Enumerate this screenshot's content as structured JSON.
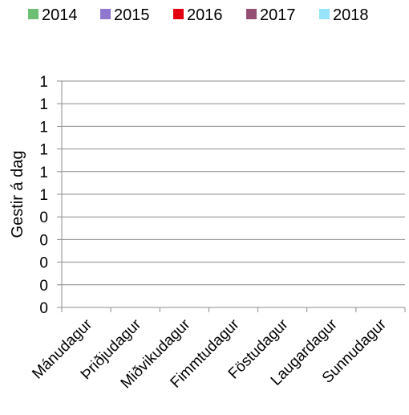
{
  "chart_data": {
    "type": "bar",
    "title": "",
    "xlabel": "",
    "ylabel": "Gestir á dag",
    "categories": [
      "Mánudagur",
      "Þriðjudagur",
      "Miðvikudagur",
      "Fimmtudagur",
      "Föstudagur",
      "Laugardagur",
      "Sunnudagur"
    ],
    "y_tick_labels": [
      "0",
      "0",
      "0",
      "0",
      "0",
      "1",
      "1",
      "1",
      "1",
      "1",
      "1"
    ],
    "ylim": [
      0,
      1
    ],
    "grid": true,
    "legend_position": "top",
    "series": [
      {
        "name": "2014",
        "color": "#6cbf73",
        "values": [
          0,
          0,
          0,
          0,
          0,
          0,
          0
        ]
      },
      {
        "name": "2015",
        "color": "#8f77cf",
        "values": [
          0,
          0,
          0,
          0,
          0,
          0,
          0
        ]
      },
      {
        "name": "2016",
        "color": "#e3000f",
        "values": [
          0,
          0,
          0,
          0,
          0,
          0,
          0
        ]
      },
      {
        "name": "2017",
        "color": "#954f72",
        "values": [
          0,
          0,
          0,
          0,
          0,
          0,
          0
        ]
      },
      {
        "name": "2018",
        "color": "#96e4fb",
        "values": [
          0,
          0,
          0,
          0,
          0,
          0,
          0
        ]
      }
    ]
  }
}
